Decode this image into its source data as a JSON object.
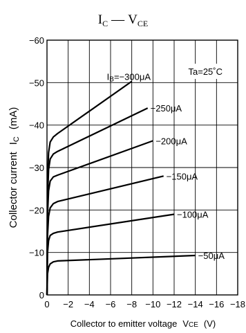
{
  "chart_data": {
    "type": "line",
    "title": {
      "main_1": "I",
      "main_1_sub": "C",
      "dash": "—",
      "main_2": "V",
      "main_2_sub": "CE"
    },
    "xlabel": {
      "text": "Collector to emitter voltage",
      "symbol": "V",
      "symbol_sub": "CE",
      "unit": "(V)"
    },
    "ylabel": {
      "text": "Collector current",
      "symbol": "I",
      "symbol_sub": "C",
      "unit": "(mA)"
    },
    "xlim": [
      0,
      -18
    ],
    "ylim": [
      0,
      -60
    ],
    "x_ticks": [
      0,
      -2,
      -4,
      -6,
      -8,
      -10,
      -12,
      -14,
      -16,
      -18
    ],
    "x_tick_labels": [
      "0",
      "−2",
      "−4",
      "−6",
      "−8",
      "−10",
      "−12",
      "−14",
      "−16",
      "−18"
    ],
    "y_ticks": [
      0,
      -10,
      -20,
      -30,
      -40,
      -50,
      -60
    ],
    "y_tick_labels": [
      "0",
      "−10",
      "−20",
      "−30",
      "−40",
      "−50",
      "−60"
    ],
    "grid": true,
    "condition": "Ta=25˚C",
    "series": [
      {
        "name": "−50μA",
        "label_prefix": "",
        "label": "−50μA",
        "x": [
          0,
          -0.05,
          -0.15,
          -0.3,
          -0.6,
          -1.0,
          -14
        ],
        "y": [
          0,
          -5,
          -6.5,
          -7.3,
          -7.8,
          -8,
          -9.3
        ]
      },
      {
        "name": "−100μA",
        "label_prefix": "",
        "label": "−100μA",
        "x": [
          0,
          -0.05,
          -0.15,
          -0.3,
          -0.6,
          -1.0,
          -12
        ],
        "y": [
          0,
          -10,
          -12.8,
          -14,
          -14.5,
          -14.8,
          -19
        ]
      },
      {
        "name": "−150μA",
        "label_prefix": "",
        "label": "−150μA",
        "x": [
          0,
          -0.05,
          -0.15,
          -0.3,
          -0.6,
          -1.0,
          -11
        ],
        "y": [
          0,
          -14,
          -18.5,
          -20.5,
          -21.5,
          -22,
          -28
        ]
      },
      {
        "name": "−200μA",
        "label_prefix": "",
        "label": "−200μA",
        "x": [
          0,
          -0.05,
          -0.15,
          -0.3,
          -0.6,
          -1.0,
          -10
        ],
        "y": [
          0,
          -19,
          -24.5,
          -26.8,
          -27.8,
          -28.2,
          -36.3
        ]
      },
      {
        "name": "−250μA",
        "label_prefix": "",
        "label": "−250μA",
        "x": [
          0,
          -0.05,
          -0.15,
          -0.3,
          -0.6,
          -1.0,
          -9.5
        ],
        "y": [
          0,
          -23,
          -29.5,
          -32,
          -33.2,
          -33.8,
          -44
        ]
      },
      {
        "name": "−300μA",
        "label_prefix": "I",
        "label_prefix_sub": "B",
        "label": "=−300μA",
        "x": [
          0,
          -0.05,
          -0.15,
          -0.3,
          -0.6,
          -1.0,
          -8
        ],
        "y": [
          0,
          -27,
          -33.5,
          -36,
          -37.2,
          -38,
          -50.3
        ]
      }
    ]
  }
}
